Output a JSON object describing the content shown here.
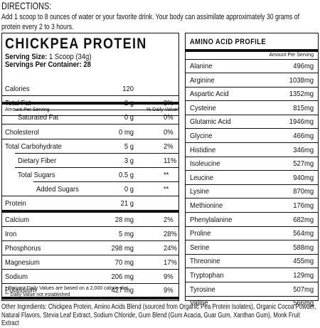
{
  "directions": {
    "heading": "DIRECTIONS:",
    "text": "Add 1 scoop to 8 ounces of water or your favorite drink. Your body can assimilate approximately 30 grams of protein every 2 to 3 hours."
  },
  "nutrition": {
    "title": "CHICKPEA PROTEIN",
    "serving_size_label": "Serving Size:",
    "serving_size_value": "1 Scoop (34g)",
    "servings_label": "Servings Per Container:",
    "servings_value": "28",
    "amount_per_serving": "Amount Per Serving",
    "daily_value_header": "% Daily Value*",
    "rows": [
      {
        "label": "Calories",
        "amount": "120",
        "dv": ""
      },
      {
        "label": "Total Fat",
        "amount": "2 g",
        "dv": "3%"
      },
      {
        "label": "Saturated Fat",
        "amount": "0 g",
        "dv": "0%"
      },
      {
        "label": "Cholesterol",
        "amount": "0 mg",
        "dv": "0%"
      },
      {
        "label": "Total Carbohydrate",
        "amount": "5 g",
        "dv": "2%"
      },
      {
        "label": "Dietary Fiber",
        "amount": "3 g",
        "dv": "11%"
      },
      {
        "label": "Total Sugars",
        "amount": "0.5 g",
        "dv": "**"
      },
      {
        "label": "Added Sugars",
        "amount": "0 g",
        "dv": "**"
      },
      {
        "label": "Protein",
        "amount": "21 g",
        "dv": ""
      },
      {
        "label": "Calcium",
        "amount": "28 mg",
        "dv": "2%"
      },
      {
        "label": "Iron",
        "amount": "5 mg",
        "dv": "28%"
      },
      {
        "label": "Phosphorus",
        "amount": "298 mg",
        "dv": "24%"
      },
      {
        "label": "Magnesium",
        "amount": "70 mg",
        "dv": "17%"
      },
      {
        "label": "Sodium",
        "amount": "206 mg",
        "dv": "9%"
      },
      {
        "label": "Potassium",
        "amount": "427 mg",
        "dv": "9%"
      }
    ],
    "footnote_1": "* Percent Daily Values are based on a 2,000 calorie diet.",
    "footnote_2": "** Daily Value not established"
  },
  "amino": {
    "title": "AMINO ACID PROFILE",
    "amount_per_serving": "Amount Per Serving",
    "rows": [
      {
        "name": "Alanine",
        "value": "496mg"
      },
      {
        "name": "Arginine",
        "value": "1038mg"
      },
      {
        "name": "Aspartic Acid",
        "value": "1352mg"
      },
      {
        "name": "Cysteine",
        "value": "815mg"
      },
      {
        "name": "Glutamic Acid",
        "value": "1946mg"
      },
      {
        "name": "Glycine",
        "value": "466mg"
      },
      {
        "name": "Histidine",
        "value": "346mg"
      },
      {
        "name": "Isoleucine",
        "value": "527mg"
      },
      {
        "name": "Leucine",
        "value": "940mg"
      },
      {
        "name": "Lysine",
        "value": "870mg"
      },
      {
        "name": "Methionine",
        "value": "176mg"
      },
      {
        "name": "Phenylalanine",
        "value": "682mg"
      },
      {
        "name": "Proline",
        "value": "564mg"
      },
      {
        "name": "Serine",
        "value": "588mg"
      },
      {
        "name": "Threonine",
        "value": "455mg"
      },
      {
        "name": "Tryptophan",
        "value": "129mg"
      },
      {
        "name": "Tyrosine",
        "value": "507mg"
      },
      {
        "name": "Valine",
        "value": "566mg"
      }
    ]
  },
  "other_ingredients": "Other Ingredients: Chickpea Protein, Amino Acids Blend (sourced from Organic Pea Protein Isolates), Organic Cocoa Powder, Natural Flavors, Stevia Leaf Extract, Sodium Chloride, Gum Blend (Gum Acacia, Guar Gum, Xanthan Gum), Monk Fruit Extract"
}
